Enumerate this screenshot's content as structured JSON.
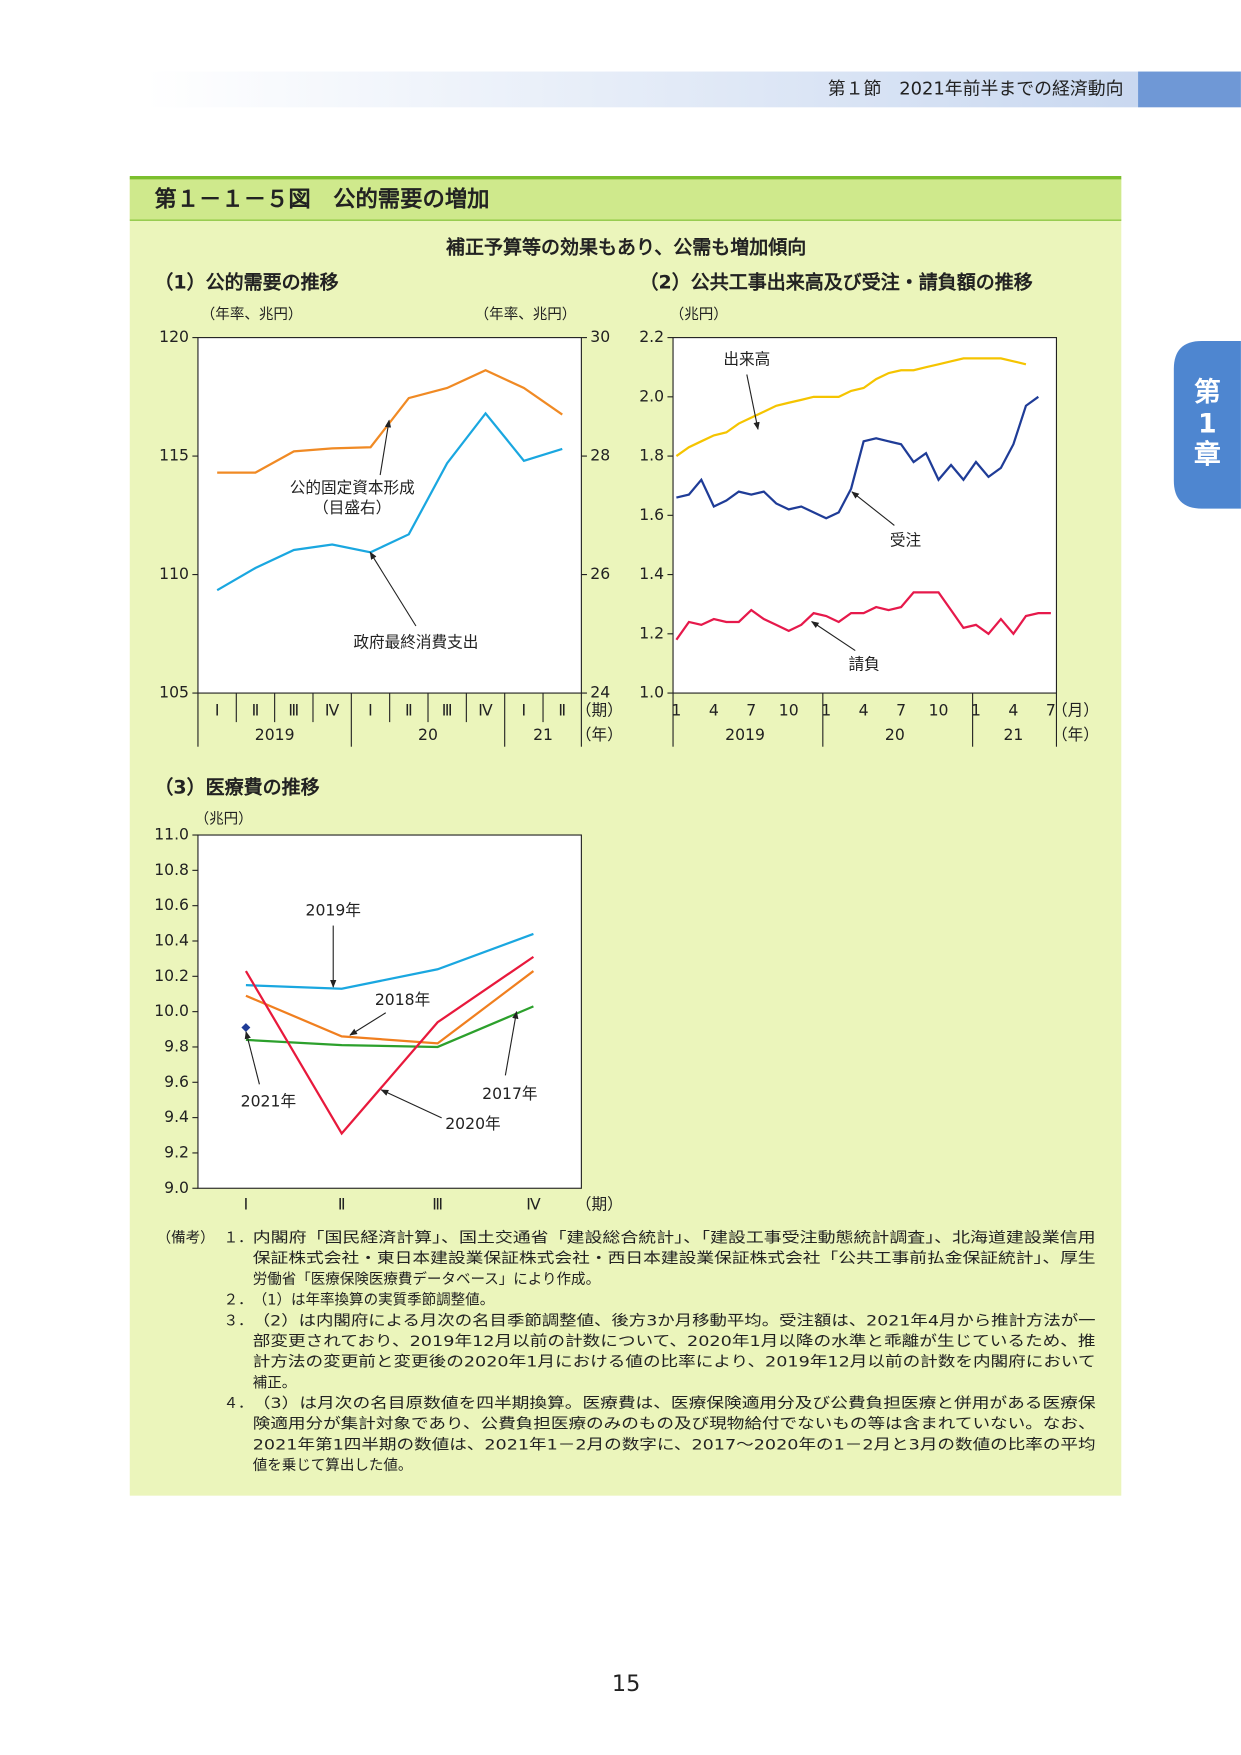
{
  "header": {
    "section": "第１節　2021年前半までの経済動向",
    "chapter_tab": [
      "第",
      "1",
      "章"
    ]
  },
  "figure": {
    "title": "第１－１－５図　公的需要の増加",
    "subtitle": "補正予算等の効果もあり、公需も増加傾向"
  },
  "chart_data": [
    {
      "type": "line",
      "title": "（1）公的需要の推移",
      "y_unit": "（年率、兆円）",
      "y2_unit": "（年率、兆円）",
      "categories": [
        "Ⅰ",
        "Ⅱ",
        "Ⅲ",
        "Ⅳ",
        "Ⅰ",
        "Ⅱ",
        "Ⅲ",
        "Ⅳ",
        "Ⅰ",
        "Ⅱ"
      ],
      "x_groups": [
        "2019",
        "20",
        "21"
      ],
      "x_unit": "（期）",
      "x_group_unit": "（年）",
      "ylim": [
        105,
        120
      ],
      "yticks": [
        105,
        110,
        115,
        120
      ],
      "y2lim": [
        24,
        30
      ],
      "y2ticks": [
        24,
        26,
        28,
        30
      ],
      "series": [
        {
          "name": "公的固定資本形成",
          "color": "#f08a24",
          "axis": "y2",
          "values": [
            27.72,
            27.72,
            28.08,
            28.13,
            28.15,
            28.98,
            29.15,
            29.45,
            29.15,
            28.7
          ]
        },
        {
          "name": "政府最終消費支出",
          "color": "#1aa7e0",
          "values": [
            109.34,
            110.28,
            111.04,
            111.27,
            110.94,
            111.7,
            114.7,
            116.8,
            114.8,
            115.3
          ]
        }
      ],
      "annotations": [
        "（目盛右）"
      ]
    },
    {
      "type": "line",
      "title": "（2）公共工事出来高及び受注・請負額の推移",
      "y_unit": "（兆円）",
      "categories": [
        1,
        null,
        null,
        4,
        null,
        null,
        7,
        null,
        null,
        10,
        null,
        null,
        1,
        null,
        null,
        4,
        null,
        null,
        7,
        null,
        null,
        10,
        null,
        null,
        1,
        null,
        null,
        4,
        null,
        null,
        7
      ],
      "x_groups": [
        "2019",
        "20",
        "21"
      ],
      "x_unit": "（月）",
      "x_group_unit": "（年）",
      "ylim": [
        1.0,
        2.2
      ],
      "yticks": [
        {
          "value": 1.0,
          "label": "1.0"
        },
        1.2,
        1.4,
        1.6,
        1.8,
        {
          "value": 2.0,
          "label": "2.0"
        },
        2.2
      ],
      "series": [
        {
          "name": "出来高",
          "color": "#f5c400",
          "values": [
            1.8,
            1.83,
            1.85,
            1.87,
            1.88,
            1.91,
            1.93,
            1.95,
            1.97,
            1.98,
            1.99,
            2.0,
            2.0,
            2.0,
            2.02,
            2.03,
            2.06,
            2.08,
            2.09,
            2.09,
            2.1,
            2.11,
            2.12,
            2.13,
            2.13,
            2.13,
            2.13,
            2.12,
            2.11,
            null,
            null
          ]
        },
        {
          "name": "受注",
          "color": "#1f3c97",
          "values": [
            1.66,
            1.67,
            1.72,
            1.63,
            1.65,
            1.68,
            1.67,
            1.68,
            1.64,
            1.62,
            1.63,
            1.61,
            1.59,
            1.61,
            1.69,
            1.85,
            1.86,
            1.85,
            1.84,
            1.78,
            1.81,
            1.72,
            1.77,
            1.72,
            1.78,
            1.73,
            1.76,
            1.84,
            1.97,
            2.0,
            null
          ]
        },
        {
          "name": "請負",
          "color": "#e6194b",
          "values": [
            1.18,
            1.24,
            1.23,
            1.25,
            1.24,
            1.24,
            1.28,
            1.25,
            1.23,
            1.21,
            1.23,
            1.27,
            1.26,
            1.24,
            1.27,
            1.27,
            1.29,
            1.28,
            1.29,
            1.34,
            1.34,
            1.34,
            1.28,
            1.22,
            1.23,
            1.2,
            1.25,
            1.2,
            1.26,
            1.27,
            1.27
          ]
        }
      ]
    },
    {
      "type": "line",
      "title": "（3）医療費の推移",
      "y_unit": "（兆円）",
      "categories": [
        "Ⅰ",
        "Ⅱ",
        "Ⅲ",
        "Ⅳ"
      ],
      "x_unit": "（期）",
      "ylim": [
        9.0,
        11.0
      ],
      "yticks": [
        {
          "value": 9.0,
          "label": "9.0"
        },
        9.2,
        9.4,
        9.6,
        9.8,
        {
          "value": 10.0,
          "label": "10.0"
        },
        10.2,
        10.4,
        10.6,
        10.8,
        {
          "value": 11.0,
          "label": "11.0"
        }
      ],
      "series": [
        {
          "name": "2019年",
          "color": "#1aa7e0",
          "values": [
            10.15,
            10.13,
            10.24,
            10.44
          ]
        },
        {
          "name": "2018年",
          "color": "#f07f1f",
          "values": [
            10.09,
            9.86,
            9.82,
            10.23
          ]
        },
        {
          "name": "2017年",
          "color": "#2ca02c",
          "values": [
            9.84,
            9.81,
            9.8,
            10.03
          ]
        },
        {
          "name": "2020年",
          "color": "#e8193c",
          "values": [
            10.23,
            9.31,
            9.94,
            10.31
          ]
        },
        {
          "name": "2021年",
          "color": "#1f3c97",
          "marker": "diamond",
          "values": [
            9.91,
            null,
            null,
            null
          ]
        }
      ]
    }
  ],
  "notes": {
    "label": "（備考）",
    "items": [
      {
        "number": "１．",
        "lines": [
          "内閣府「国民経済計算」、国土交通省「建設総合統計」、「建設工事受注動態統計調査」、北海道建設業信用",
          "保証株式会社・東日本建設業保証株式会社・西日本建設業保証株式会社「公共工事前払金保証統計」、厚生",
          "労働省「医療保険医療費データベース」により作成。"
        ]
      },
      {
        "number": "２．",
        "lines": [
          "（1）は年率換算の実質季節調整値。"
        ]
      },
      {
        "number": "３．",
        "lines": [
          "（2）は内閣府による月次の名目季節調整値、後方3か月移動平均。受注額は、2021年4月から推計方法が一",
          "部変更されており、2019年12月以前の計数について、2020年1月以降の水準と乖離が生じているため、推",
          "計方法の変更前と変更後の2020年1月における値の比率により、2019年12月以前の計数を内閣府において",
          "補正。"
        ]
      },
      {
        "number": "４．",
        "lines": [
          "（3）は月次の名目原数値を四半期換算。医療費は、医療保険適用分及び公費負担医療と併用がある医療保",
          "険適用分が集計対象であり、公費負担医療のみのもの及び現物給付でないもの等は含まれていない。なお、",
          "2021年第1四半期の数値は、2021年1－2月の数字に、2017～2020年の1－2月と3月の数値の比率の平均",
          "値を乗じて算出した値。"
        ]
      }
    ]
  },
  "page_number": "15"
}
